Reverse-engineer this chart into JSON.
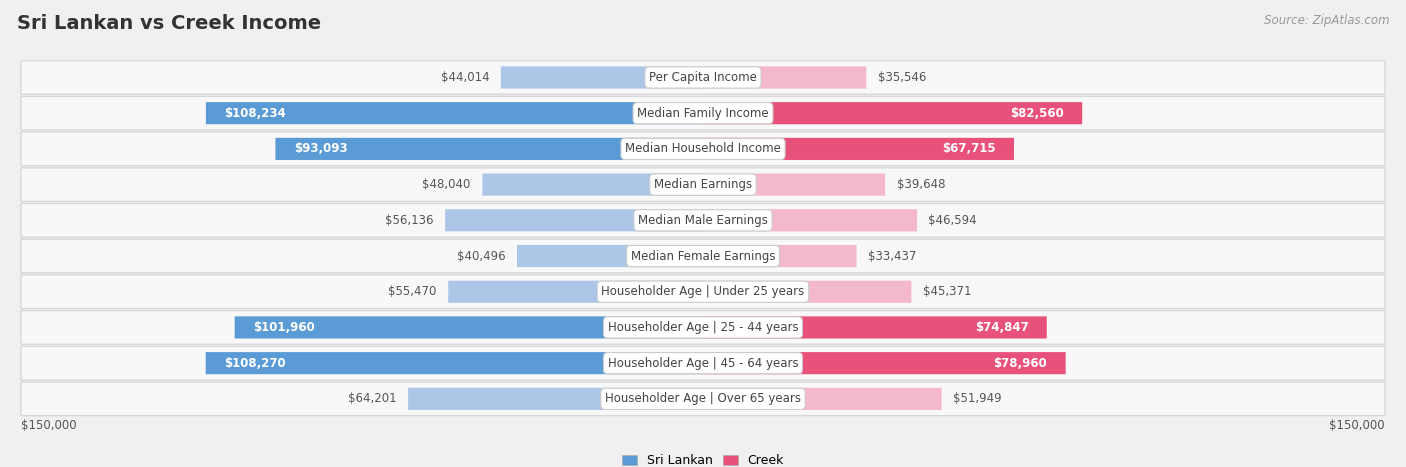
{
  "title": "Sri Lankan vs Creek Income",
  "source": "Source: ZipAtlas.com",
  "categories": [
    "Per Capita Income",
    "Median Family Income",
    "Median Household Income",
    "Median Earnings",
    "Median Male Earnings",
    "Median Female Earnings",
    "Householder Age | Under 25 years",
    "Householder Age | 25 - 44 years",
    "Householder Age | 45 - 64 years",
    "Householder Age | Over 65 years"
  ],
  "sri_lankan": [
    44014,
    108234,
    93093,
    48040,
    56136,
    40496,
    55470,
    101960,
    108270,
    64201
  ],
  "creek": [
    35546,
    82560,
    67715,
    39648,
    46594,
    33437,
    45371,
    74847,
    78960,
    51949
  ],
  "sri_lankan_labels": [
    "$44,014",
    "$108,234",
    "$93,093",
    "$48,040",
    "$56,136",
    "$40,496",
    "$55,470",
    "$101,960",
    "$108,270",
    "$64,201"
  ],
  "creek_labels": [
    "$35,546",
    "$82,560",
    "$67,715",
    "$39,648",
    "$46,594",
    "$33,437",
    "$45,371",
    "$74,847",
    "$78,960",
    "$51,949"
  ],
  "sri_lankan_color_light": "#adc6e8",
  "sri_lankan_color_dark": "#5b9bd5",
  "creek_color_light": "#f4b8cb",
  "creek_color_dark": "#e8527a",
  "max_value": 150000,
  "background_color": "#f0f0f0",
  "row_bg_color": "#ffffff",
  "title_fontsize": 14,
  "label_fontsize": 9,
  "value_fontsize": 9,
  "inside_threshold": 65000
}
